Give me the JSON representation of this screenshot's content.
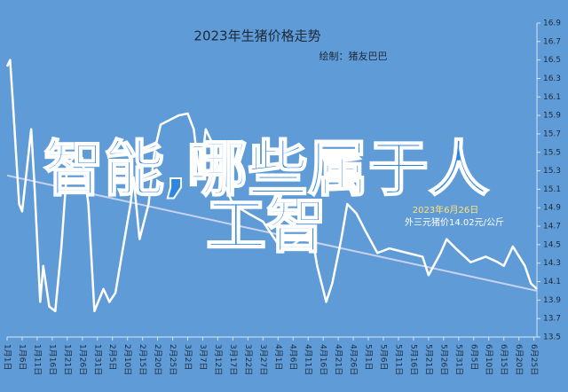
{
  "chart_data": {
    "type": "line",
    "title": "2023年生猪价格走势",
    "subtitle": "绘制：猪友巴巴",
    "annotation": [
      "2023年6月26日",
      "外三元猪价14.02元/公斤"
    ],
    "overlay_text": "智能,哪些属于人工智",
    "x": [
      0,
      1,
      2,
      4,
      5,
      6.5,
      8,
      9,
      11,
      12,
      14,
      16,
      18,
      20,
      23,
      25,
      27,
      29,
      32,
      34,
      36,
      38,
      41,
      42,
      44,
      47,
      49,
      51,
      54,
      57,
      60,
      62,
      64,
      66,
      68,
      71,
      75,
      80,
      85,
      91,
      95,
      101,
      103,
      106,
      108,
      111,
      113,
      116,
      119,
      123,
      127,
      133,
      138,
      140,
      144,
      146,
      149,
      154,
      159,
      163,
      165,
      168,
      172,
      174,
      176
    ],
    "values": [
      16.43,
      16.5,
      16.0,
      14.94,
      14.86,
      15.3,
      15.75,
      15.2,
      13.88,
      14.27,
      13.83,
      13.78,
      14.46,
      15.37,
      15.47,
      15.44,
      14.94,
      13.78,
      14.02,
      13.88,
      13.98,
      14.37,
      14.94,
      15.23,
      14.56,
      14.94,
      15.52,
      15.8,
      15.85,
      15.9,
      15.92,
      15.75,
      15.23,
      15.75,
      15.61,
      15.23,
      14.94,
      14.84,
      14.75,
      14.46,
      14.5,
      14.65,
      14.27,
      13.88,
      14.08,
      14.56,
      14.94,
      14.84,
      14.65,
      14.41,
      14.46,
      14.41,
      14.37,
      14.17,
      14.41,
      14.56,
      14.46,
      14.31,
      14.37,
      14.31,
      14.27,
      14.48,
      14.27,
      14.08,
      14.02
    ],
    "color": "#ffffff",
    "trendline": {
      "x": [
        0,
        176
      ],
      "values": [
        15.25,
        14.0
      ],
      "color": "#c9d3ef"
    },
    "xlim": [
      0,
      176
    ],
    "xticks": [
      {
        "value": 0,
        "label": "1月1日"
      },
      {
        "value": 5,
        "label": "1月6日"
      },
      {
        "value": 10,
        "label": "1月11日"
      },
      {
        "value": 15,
        "label": "1月16日"
      },
      {
        "value": 20,
        "label": "1月21日"
      },
      {
        "value": 25,
        "label": "1月26日"
      },
      {
        "value": 30,
        "label": "1月31日"
      },
      {
        "value": 35,
        "label": "2月5日"
      },
      {
        "value": 40,
        "label": "2月10日"
      },
      {
        "value": 45,
        "label": "2月15日"
      },
      {
        "value": 50,
        "label": "2月20日"
      },
      {
        "value": 55,
        "label": "2月25日"
      },
      {
        "value": 60,
        "label": "3月2日"
      },
      {
        "value": 65,
        "label": "3月7日"
      },
      {
        "value": 70,
        "label": "3月12日"
      },
      {
        "value": 75,
        "label": "3月17日"
      },
      {
        "value": 80,
        "label": "3月22日"
      },
      {
        "value": 85,
        "label": "3月27日"
      },
      {
        "value": 90,
        "label": "4月1日"
      },
      {
        "value": 95,
        "label": "4月6日"
      },
      {
        "value": 100,
        "label": "4月11日"
      },
      {
        "value": 105,
        "label": "4月16日"
      },
      {
        "value": 110,
        "label": "4月21日"
      },
      {
        "value": 115,
        "label": "4月26日"
      },
      {
        "value": 120,
        "label": "5月1日"
      },
      {
        "value": 125,
        "label": "5月6日"
      },
      {
        "value": 130,
        "label": "5月11日"
      },
      {
        "value": 135,
        "label": "5月16日"
      },
      {
        "value": 140,
        "label": "5月21日"
      },
      {
        "value": 145,
        "label": "5月26日"
      },
      {
        "value": 150,
        "label": "5月31日"
      },
      {
        "value": 155,
        "label": "6月5日"
      },
      {
        "value": 160,
        "label": "6月10日"
      },
      {
        "value": 165,
        "label": "6月15日"
      },
      {
        "value": 170,
        "label": "6月20日"
      },
      {
        "value": 175,
        "label": "6月25日"
      }
    ],
    "ylim": [
      13.5,
      16.9
    ],
    "yticks": [
      13.5,
      13.7,
      13.9,
      14.1,
      14.3,
      14.5,
      14.7,
      14.9,
      15.1,
      15.3,
      15.5,
      15.7,
      15.9,
      16.1,
      16.3,
      16.5,
      16.7,
      16.9
    ]
  }
}
